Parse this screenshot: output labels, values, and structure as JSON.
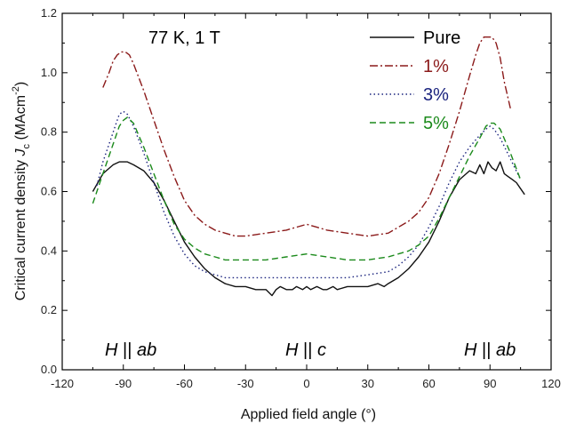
{
  "chart_data": {
    "type": "line",
    "xlabel": "Applied field angle (°)",
    "ylabel_main": "Critical current density ",
    "ylabel_symbol": "J",
    "ylabel_sub": "c",
    "ylabel_unit": " (MAcm",
    "ylabel_exp": "-2",
    "ylabel_close": ")",
    "xlim": [
      -120,
      120
    ],
    "ylim": [
      0.0,
      1.2
    ],
    "xticks": [
      -120,
      -90,
      -60,
      -30,
      0,
      30,
      60,
      90,
      120
    ],
    "yticks": [
      0.0,
      0.2,
      0.4,
      0.6,
      0.8,
      1.0,
      1.2
    ],
    "ytick_labels": [
      "0.0",
      "0.2",
      "0.4",
      "0.6",
      "0.8",
      "1.0",
      "1.2"
    ],
    "grid": false,
    "legend_position": "top-right",
    "annotations": {
      "condition": "77 K, 1 T",
      "left": {
        "h": "H",
        "sep": " || ",
        "plane": "ab"
      },
      "center": {
        "h": "H",
        "sep": " || ",
        "plane": "c"
      },
      "right": {
        "h": "H",
        "sep": " || ",
        "plane": "ab"
      }
    },
    "series": [
      {
        "name": "Pure",
        "color": "#111111",
        "style": "solid",
        "x": [
          -105,
          -100,
          -95,
          -92,
          -90,
          -88,
          -85,
          -80,
          -75,
          -70,
          -65,
          -60,
          -55,
          -50,
          -45,
          -40,
          -35,
          -30,
          -25,
          -20,
          -17,
          -15,
          -13,
          -10,
          -7,
          -5,
          -2,
          0,
          2,
          5,
          8,
          10,
          13,
          15,
          20,
          25,
          30,
          35,
          38,
          40,
          45,
          50,
          55,
          60,
          65,
          70,
          75,
          80,
          83,
          85,
          87,
          89,
          91,
          93,
          95,
          97,
          99,
          101,
          103,
          105,
          107
        ],
        "y": [
          0.6,
          0.66,
          0.69,
          0.7,
          0.7,
          0.7,
          0.69,
          0.67,
          0.63,
          0.57,
          0.5,
          0.43,
          0.38,
          0.34,
          0.31,
          0.29,
          0.28,
          0.28,
          0.27,
          0.27,
          0.25,
          0.27,
          0.28,
          0.27,
          0.27,
          0.28,
          0.27,
          0.28,
          0.27,
          0.28,
          0.27,
          0.27,
          0.28,
          0.27,
          0.28,
          0.28,
          0.28,
          0.29,
          0.28,
          0.29,
          0.31,
          0.34,
          0.38,
          0.43,
          0.5,
          0.58,
          0.64,
          0.67,
          0.66,
          0.69,
          0.66,
          0.7,
          0.68,
          0.67,
          0.7,
          0.66,
          0.65,
          0.64,
          0.63,
          0.61,
          0.59
        ]
      },
      {
        "name": "1%",
        "color": "#8b1a1a",
        "style": "dashdot",
        "x": [
          -100,
          -97,
          -95,
          -93,
          -91,
          -90,
          -89,
          -87,
          -85,
          -80,
          -75,
          -70,
          -65,
          -60,
          -55,
          -50,
          -45,
          -40,
          -35,
          -30,
          -20,
          -10,
          0,
          5,
          10,
          20,
          30,
          40,
          50,
          55,
          60,
          65,
          70,
          75,
          80,
          83,
          85,
          87,
          89,
          90,
          91,
          93,
          95,
          97,
          100
        ],
        "y": [
          0.95,
          1.0,
          1.04,
          1.06,
          1.07,
          1.07,
          1.07,
          1.06,
          1.03,
          0.94,
          0.84,
          0.74,
          0.65,
          0.57,
          0.52,
          0.49,
          0.47,
          0.46,
          0.45,
          0.45,
          0.46,
          0.47,
          0.49,
          0.48,
          0.47,
          0.46,
          0.45,
          0.46,
          0.5,
          0.53,
          0.58,
          0.66,
          0.76,
          0.87,
          0.99,
          1.06,
          1.1,
          1.12,
          1.12,
          1.12,
          1.12,
          1.1,
          1.05,
          0.97,
          0.88
        ]
      },
      {
        "name": "3%",
        "color": "#1a237e",
        "style": "dotted",
        "x": [
          -103,
          -100,
          -95,
          -92,
          -90,
          -88,
          -85,
          -80,
          -75,
          -70,
          -65,
          -60,
          -55,
          -50,
          -45,
          -40,
          -35,
          -30,
          -20,
          -10,
          0,
          10,
          20,
          30,
          40,
          45,
          50,
          55,
          60,
          65,
          70,
          75,
          80,
          85,
          88,
          90,
          92,
          95,
          100,
          105
        ],
        "y": [
          0.62,
          0.7,
          0.8,
          0.86,
          0.87,
          0.86,
          0.82,
          0.73,
          0.63,
          0.53,
          0.45,
          0.39,
          0.35,
          0.33,
          0.32,
          0.31,
          0.31,
          0.31,
          0.31,
          0.31,
          0.31,
          0.31,
          0.31,
          0.32,
          0.33,
          0.35,
          0.38,
          0.42,
          0.48,
          0.55,
          0.63,
          0.7,
          0.75,
          0.79,
          0.81,
          0.82,
          0.81,
          0.78,
          0.71,
          0.64
        ]
      },
      {
        "name": "5%",
        "color": "#1b8a1b",
        "style": "dashed",
        "x": [
          -105,
          -100,
          -95,
          -92,
          -90,
          -88,
          -85,
          -80,
          -75,
          -70,
          -65,
          -60,
          -55,
          -50,
          -45,
          -40,
          -35,
          -30,
          -20,
          -10,
          0,
          10,
          20,
          30,
          40,
          45,
          50,
          55,
          60,
          65,
          70,
          75,
          80,
          85,
          88,
          90,
          92,
          95,
          100,
          105
        ],
        "y": [
          0.56,
          0.66,
          0.76,
          0.82,
          0.84,
          0.85,
          0.83,
          0.75,
          0.66,
          0.57,
          0.49,
          0.44,
          0.41,
          0.39,
          0.38,
          0.37,
          0.37,
          0.37,
          0.37,
          0.38,
          0.39,
          0.38,
          0.37,
          0.37,
          0.38,
          0.39,
          0.4,
          0.42,
          0.45,
          0.51,
          0.58,
          0.65,
          0.72,
          0.78,
          0.82,
          0.83,
          0.83,
          0.81,
          0.73,
          0.64
        ]
      }
    ]
  }
}
